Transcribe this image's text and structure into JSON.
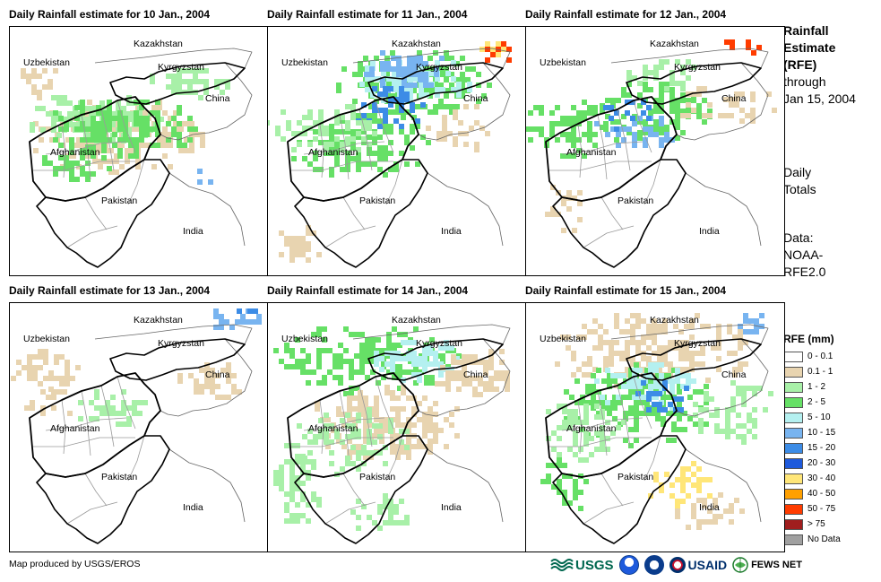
{
  "panels": [
    {
      "title": "Daily Rainfall estimate for 10 Jan., 2004",
      "day": 10
    },
    {
      "title": "Daily Rainfall estimate for 11 Jan., 2004",
      "day": 11
    },
    {
      "title": "Daily Rainfall estimate for 12 Jan., 2004",
      "day": 12
    },
    {
      "title": "Daily Rainfall estimate for 13 Jan., 2004",
      "day": 13
    },
    {
      "title": "Daily Rainfall estimate for 14 Jan., 2004",
      "day": 14
    },
    {
      "title": "Daily Rainfall estimate for 15 Jan., 2004",
      "day": 15
    }
  ],
  "countries": {
    "kazakhstan": "Kazakhstan",
    "uzbekistan": "Uzbekistan",
    "kyrgyzstan": "Kyrgyzstan",
    "china": "China",
    "afghanistan": "Afghanistan",
    "pakistan": "Pakistan",
    "india": "India"
  },
  "side": {
    "title_line1": "Rainfall",
    "title_line2": "Estimate",
    "title_line3": "(RFE)",
    "through": "through",
    "date": "Jan 15, 2004",
    "daily1": "Daily",
    "daily2": "Totals",
    "data1": "Data:",
    "data2": "NOAA-",
    "data3": "RFE2.0"
  },
  "legend": {
    "title": "RFE (mm)",
    "items": [
      {
        "label": "0 - 0.1",
        "color": "#ffffff"
      },
      {
        "label": "0.1 - 1",
        "color": "#e8d4b0"
      },
      {
        "label": "1 - 2",
        "color": "#a8f0a8"
      },
      {
        "label": "2 - 5",
        "color": "#66e066"
      },
      {
        "label": "5 - 10",
        "color": "#b4f0f0"
      },
      {
        "label": "10 - 15",
        "color": "#78b4f0"
      },
      {
        "label": "15 - 20",
        "color": "#3c8ce6"
      },
      {
        "label": "20 - 30",
        "color": "#1e5adc"
      },
      {
        "label": "30 - 40",
        "color": "#ffe678"
      },
      {
        "label": "40 - 50",
        "color": "#ffa000"
      },
      {
        "label": "50 - 75",
        "color": "#ff3c00"
      },
      {
        "label": "> 75",
        "color": "#a01e1e"
      },
      {
        "label": "No Data",
        "color": "#a0a0a0"
      }
    ]
  },
  "footer": {
    "credit": "Map produced by USGS/EROS",
    "usgs": "USGS",
    "usaid": "USAID",
    "fews": "FEWS NET"
  }
}
